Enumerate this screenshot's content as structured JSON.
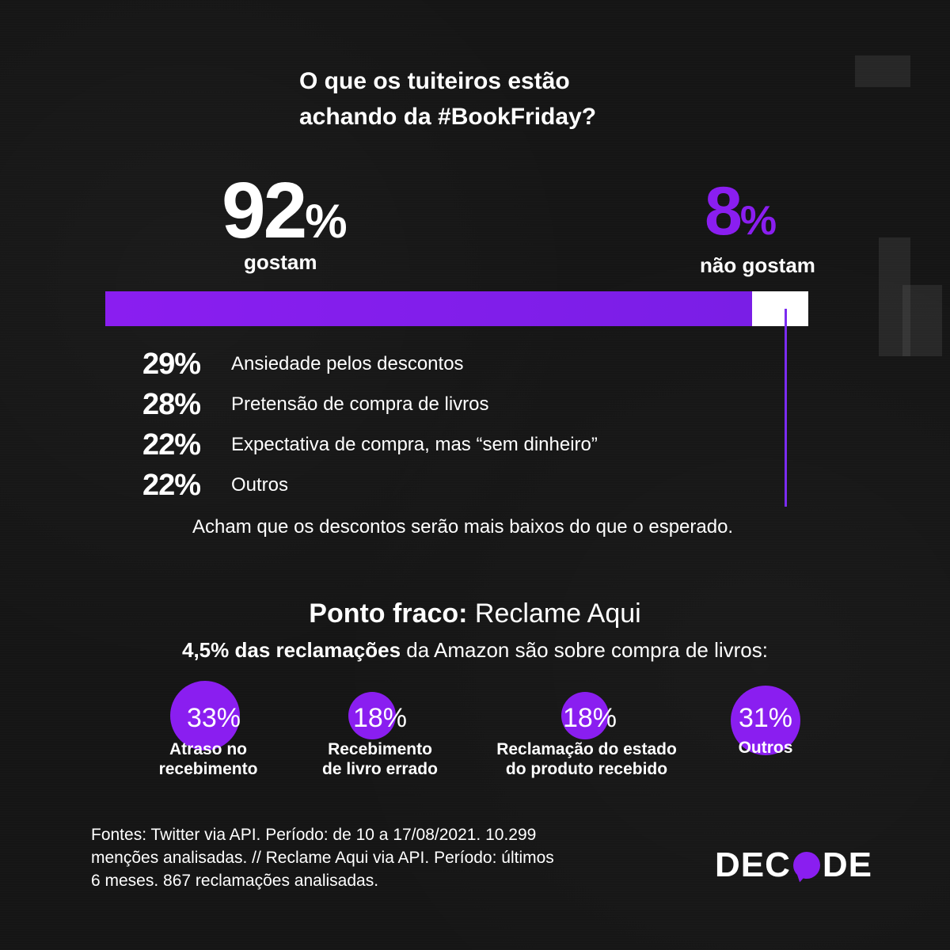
{
  "title_line1": "O que os tuiteiros estão",
  "title_line2": "achando da #BookFriday?",
  "chart_data": {
    "type": "bar",
    "categories": [
      "gostam",
      "não gostam"
    ],
    "values": [
      92,
      8
    ],
    "unit": "%",
    "colors": {
      "like": "#8a1ef0",
      "dislike": "#ffffff"
    }
  },
  "like": {
    "value": "92",
    "sign": "%",
    "label": "gostam"
  },
  "dislike": {
    "value": "8",
    "sign": "%",
    "label": "não gostam",
    "note": "Acham que os descontos  serão mais baixos do que o esperado."
  },
  "reasons": [
    {
      "pct": "29%",
      "text": "Ansiedade pelos descontos"
    },
    {
      "pct": "28%",
      "text": "Pretensão de compra de livros"
    },
    {
      "pct": "22%",
      "text": "Expectativa de compra, mas “sem dinheiro”"
    },
    {
      "pct": "22%",
      "text": "Outros"
    }
  ],
  "weak_point": {
    "bold": "Ponto fraco:",
    "rest": " Reclame Aqui",
    "sub_bold": "4,5% das reclamações",
    "sub_rest": " da Amazon são sobre compra de livros:"
  },
  "complaints": [
    {
      "pct": "33%",
      "value": 33,
      "l1": "Atraso no",
      "l2": "recebimento"
    },
    {
      "pct": "18%",
      "value": 18,
      "l1": "Recebimento",
      "l2": "de livro errado"
    },
    {
      "pct": "18%",
      "value": 18,
      "l1": "Reclamação do estado",
      "l2": "do produto recebido"
    },
    {
      "pct": "31%",
      "value": 31,
      "l1": "Outros",
      "l2": ""
    }
  ],
  "sources": [
    "Fontes: Twitter via API. Período: de 10 a 17/08/2021. 10.299",
    "menções analisadas. // Reclame Aqui via API. Período: últimos",
    "6 meses. 867 reclamações analisadas."
  ],
  "logo": {
    "a": "DEC",
    "b": "DE"
  },
  "accent": "#8a1ef0"
}
